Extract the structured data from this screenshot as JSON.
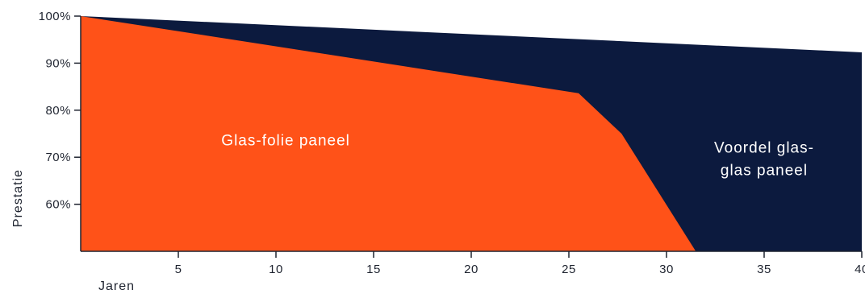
{
  "chart_data": {
    "type": "area",
    "xlabel": "Jaren",
    "ylabel": "Prestatie",
    "xlim": [
      0,
      40
    ],
    "ylim": [
      50,
      100
    ],
    "x_ticks": [
      5,
      10,
      15,
      20,
      25,
      30,
      35,
      40
    ],
    "x_tick_labels": [
      "5",
      "10",
      "15",
      "20",
      "25",
      "30",
      "35",
      "40"
    ],
    "y_ticks": [
      60,
      70,
      80,
      90,
      100
    ],
    "y_tick_labels": [
      "60%",
      "70%",
      "80%",
      "90%",
      "100%"
    ],
    "grid": false,
    "series": [
      {
        "name": "Voordel glas-glas paneel",
        "color": "#0c1a3e",
        "points": [
          [
            0,
            100
          ],
          [
            40,
            92.3
          ]
        ]
      },
      {
        "name": "Glas-folie paneel",
        "color": "#ff5218",
        "points": [
          [
            0,
            100
          ],
          [
            25.5,
            83.6
          ],
          [
            27.7,
            75
          ],
          [
            31.5,
            50
          ]
        ]
      }
    ],
    "annotations": [
      {
        "lines": [
          "Glas-folie paneel"
        ],
        "x": 10.5,
        "y": 72.5,
        "series": "Glas-folie paneel"
      },
      {
        "lines": [
          "Voordel glas-",
          "glas paneel"
        ],
        "x": 35,
        "y": 71,
        "series": "Voordel glas-glas paneel"
      }
    ]
  }
}
